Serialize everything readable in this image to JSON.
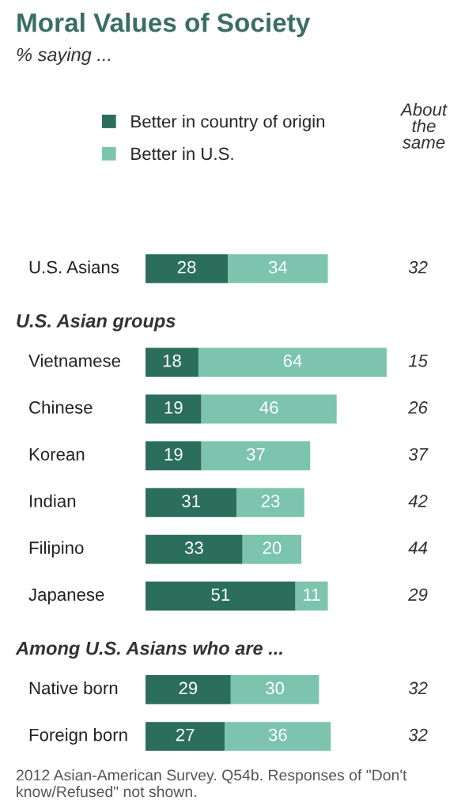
{
  "chart_data": {
    "type": "bar",
    "orientation": "horizontal",
    "title": "Moral Values of Society",
    "subtitle": "% saying ...",
    "categories": [
      "U.S. Asians",
      "U.S. Asian groups",
      "Vietnamese",
      "Chinese",
      "Korean",
      "Indian",
      "Filipino",
      "Japanese",
      "Among U.S. Asians who are ...",
      "Native born",
      "Foreign born"
    ],
    "series": [
      {
        "name": "Better in country of origin",
        "color": "#2b6e5c",
        "values": [
          28,
          null,
          18,
          19,
          19,
          31,
          33,
          51,
          null,
          29,
          27
        ]
      },
      {
        "name": "Better in U.S.",
        "color": "#7cc4ad",
        "values": [
          34,
          null,
          64,
          46,
          37,
          23,
          20,
          11,
          null,
          30,
          36
        ]
      }
    ],
    "stacked": true,
    "data_labels": true,
    "legend": "top",
    "annotations": [
      "About the same",
      "32",
      "15",
      "26",
      "37",
      "42",
      "44",
      "29",
      "32",
      "32",
      "2012 Asian-American Survey. Q54b. Responses of \"Don't know/Refused\" not shown."
    ]
  }
}
